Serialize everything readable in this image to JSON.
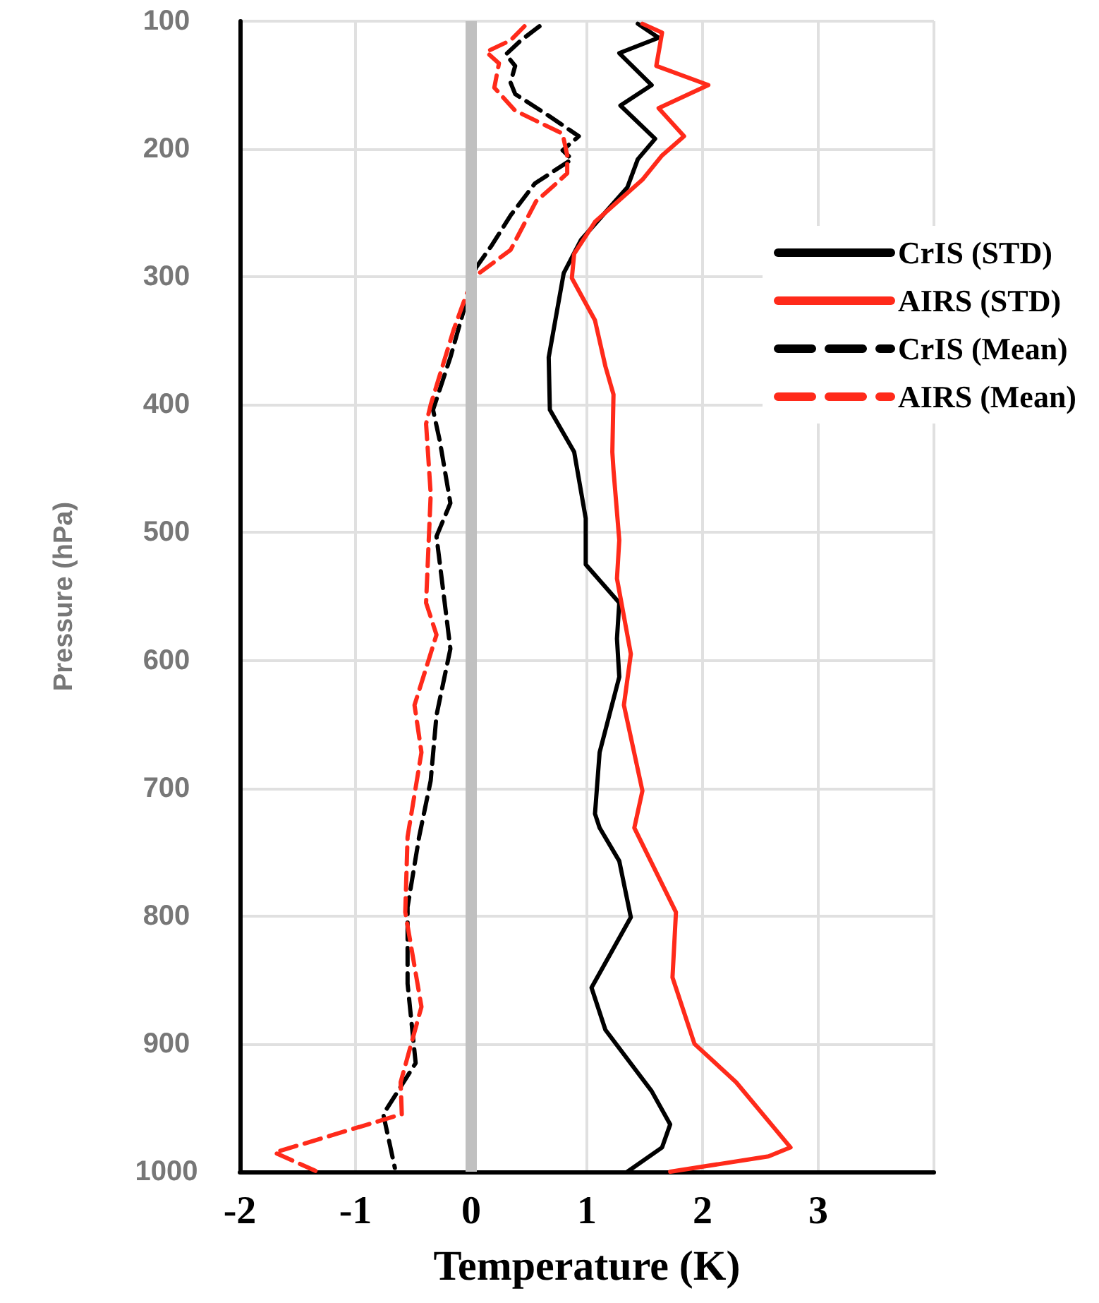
{
  "chart_data": {
    "type": "line",
    "xlabel": "Temperature (K)",
    "ylabel": "Pressure (hPa)",
    "xlim": [
      -2,
      4
    ],
    "xticks": [
      -2,
      -1,
      0,
      1,
      2,
      3,
      {
        "value": 4,
        "label": null
      }
    ],
    "ylim": [
      1000,
      100
    ],
    "yticks": [
      100,
      200,
      300,
      400,
      500,
      600,
      700,
      800,
      900,
      1000
    ],
    "grid": true,
    "legend": "right",
    "marker": "none",
    "ref_lines": [
      {
        "axis": "x",
        "value": 0,
        "color": "#c0c0c0"
      }
    ],
    "series": [
      {
        "name": "CrIS (STD)",
        "color": "#000000",
        "line_style": "solid",
        "x": [
          1.44,
          1.62,
          1.28,
          1.56,
          1.29,
          1.59,
          1.44,
          1.35,
          0.95,
          0.8,
          0.67,
          0.68,
          0.89,
          0.99,
          0.99,
          1.28,
          1.26,
          1.28,
          1.11,
          1.07,
          1.11,
          1.28,
          1.38,
          1.04,
          1.16,
          1.56,
          1.72,
          1.65,
          1.35
        ],
        "values": [
          102,
          113,
          125,
          150,
          166,
          192,
          208,
          230,
          271,
          297,
          363,
          404,
          437,
          489,
          525,
          555,
          583,
          613,
          672,
          720,
          731,
          757,
          801,
          856,
          889,
          937,
          963,
          981,
          1000
        ]
      },
      {
        "name": "AIRS (STD)",
        "color": "#ff2a1a",
        "line_style": "solid",
        "x": [
          1.48,
          1.65,
          1.6,
          2.05,
          1.62,
          1.84,
          1.65,
          1.48,
          1.07,
          0.89,
          0.87,
          1.07,
          1.16,
          1.23,
          1.22,
          1.23,
          1.28,
          1.26,
          1.38,
          1.32,
          1.48,
          1.41,
          1.77,
          1.74,
          1.93,
          2.29,
          2.76,
          2.57,
          1.72
        ],
        "values": [
          102,
          109,
          135,
          150,
          168,
          190,
          205,
          224,
          257,
          282,
          301,
          334,
          370,
          392,
          437,
          451,
          506,
          536,
          595,
          635,
          702,
          731,
          797,
          848,
          900,
          930,
          981,
          988,
          1000
        ]
      },
      {
        "name": "CrIS (Mean)",
        "color": "#000000",
        "line_style": "dashed",
        "x": [
          0.59,
          0.43,
          0.3,
          0.38,
          0.34,
          0.38,
          0.67,
          0.93,
          0.79,
          0.87,
          0.55,
          0.34,
          0.18,
          0.04,
          -0.02,
          -0.18,
          -0.33,
          -0.27,
          -0.18,
          -0.3,
          -0.18,
          -0.3,
          -0.35,
          -0.45,
          -0.55,
          -0.55,
          -0.48,
          -0.76,
          -0.66
        ],
        "values": [
          104,
          115,
          126,
          135,
          148,
          157,
          174,
          190,
          201,
          208,
          227,
          252,
          275,
          293,
          312,
          363,
          404,
          429,
          477,
          503,
          591,
          643,
          694,
          738,
          793,
          853,
          915,
          955,
          997
        ]
      },
      {
        "name": "AIRS (Mean)",
        "color": "#ff2a1a",
        "line_style": "dashed",
        "x": [
          0.46,
          0.34,
          0.13,
          0.24,
          0.2,
          0.38,
          0.79,
          0.83,
          0.83,
          0.71,
          0.56,
          0.34,
          0.01,
          -0.15,
          -0.35,
          -0.39,
          -0.35,
          -0.39,
          -0.3,
          -0.49,
          -0.43,
          -0.55,
          -0.57,
          -0.43,
          -0.61,
          -0.6,
          -1.7,
          -1.33
        ],
        "values": [
          104,
          115,
          124,
          133,
          152,
          170,
          188,
          205,
          219,
          229,
          241,
          279,
          301,
          341,
          400,
          415,
          470,
          555,
          580,
          635,
          672,
          738,
          797,
          871,
          930,
          955,
          985,
          1000
        ]
      }
    ]
  }
}
